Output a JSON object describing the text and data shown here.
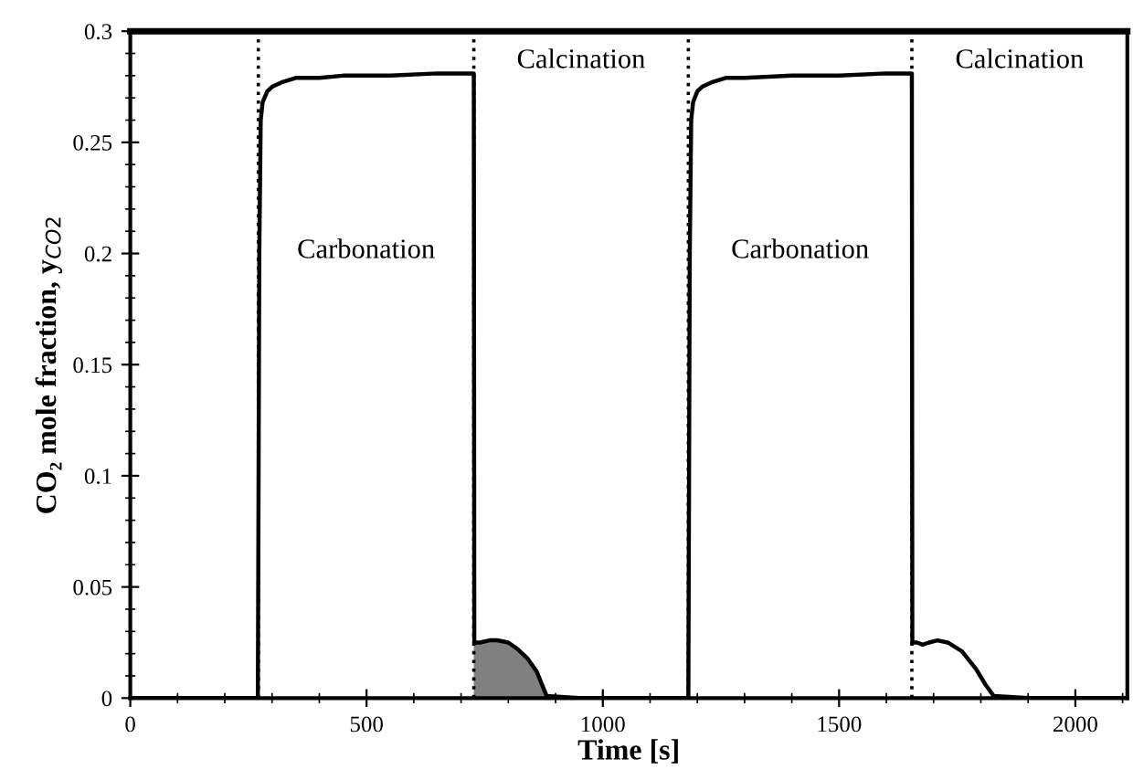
{
  "chart_data": {
    "type": "line",
    "xlabel": "Time [s]",
    "ylabel": "CO₂ mole fraction, y$_{CO2}$",
    "xlim": [
      0,
      2110
    ],
    "ylim": [
      0,
      0.3
    ],
    "xticks": [
      0,
      500,
      1000,
      1500,
      2000
    ],
    "yticks": [
      0,
      0.05,
      0.1,
      0.15,
      0.2,
      0.25,
      0.3
    ],
    "grid": false,
    "legend": false,
    "marker": "none",
    "line_style": "solid",
    "series": [
      {
        "color": "#000000",
        "x": [
          0,
          270,
          273,
          276,
          280,
          290,
          300,
          320,
          350,
          400,
          450,
          550,
          650,
          727,
          728,
          740,
          760,
          777,
          800,
          820,
          840,
          860,
          881,
          950,
          1000,
          1100,
          1181,
          1184,
          1187,
          1191,
          1200,
          1210,
          1230,
          1260,
          1300,
          1400,
          1500,
          1600,
          1654,
          1655,
          1665,
          1677,
          1690,
          1708,
          1730,
          1760,
          1790,
          1810,
          1827,
          1900,
          2110
        ],
        "values": [
          0,
          0,
          0.2,
          0.26,
          0.268,
          0.273,
          0.275,
          0.277,
          0.279,
          0.279,
          0.28,
          0.28,
          0.281,
          0.281,
          0.025,
          0.025,
          0.026,
          0.026,
          0.025,
          0.022,
          0.018,
          0.012,
          0.001,
          0,
          0,
          0,
          0,
          0.2,
          0.26,
          0.268,
          0.273,
          0.275,
          0.277,
          0.279,
          0.279,
          0.28,
          0.28,
          0.281,
          0.281,
          0.025,
          0.025,
          0.024,
          0.025,
          0.026,
          0.025,
          0.021,
          0.013,
          0.006,
          0.001,
          0,
          0
        ]
      },
      {
        "type": "area",
        "color": "#808080",
        "x": [
          727,
          740,
          760,
          777,
          800,
          820,
          840,
          860,
          881
        ],
        "values": [
          0.025,
          0.025,
          0.026,
          0.026,
          0.025,
          0.022,
          0.018,
          0.012,
          0.001
        ]
      }
    ],
    "ref_lines": [
      {
        "axis": "x",
        "value": 271,
        "color": "#000000",
        "line_style": "dotted"
      },
      {
        "axis": "x",
        "value": 727,
        "color": "#000000",
        "line_style": "dotted"
      },
      {
        "axis": "x",
        "value": 1181,
        "color": "#000000",
        "line_style": "dotted"
      },
      {
        "axis": "x",
        "value": 1654,
        "color": "#000000",
        "line_style": "dotted"
      }
    ],
    "annotations": [
      "Carbonation",
      "Calcination",
      "Carbonation",
      "Calcination"
    ]
  }
}
